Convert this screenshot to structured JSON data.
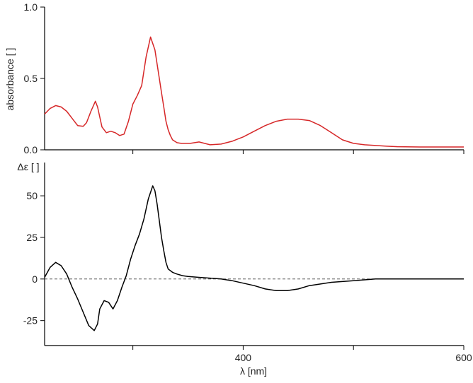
{
  "chart_data": [
    {
      "type": "line",
      "panel": "top",
      "ylabel": "absorbance [ ]",
      "xlabel": "",
      "xlim": [
        220,
        600
      ],
      "ylim": [
        0,
        1.0
      ],
      "y_ticks": [
        0.0,
        0.5,
        1.0
      ],
      "y_tick_labels": [
        "0.0",
        "0.5",
        "1.0"
      ],
      "x_ticks": [
        300,
        400,
        500,
        600
      ],
      "x_tick_labels": [
        "",
        "",
        "",
        ""
      ],
      "grid": false,
      "color": "#d62728",
      "series": [
        {
          "x": [
            220,
            225,
            230,
            235,
            240,
            245,
            250,
            255,
            258,
            262,
            266,
            268,
            272,
            276,
            280,
            284,
            288,
            292,
            296,
            300,
            304,
            308,
            312,
            316,
            320,
            324,
            326,
            328,
            330,
            332,
            334,
            336,
            340,
            344,
            348,
            352,
            356,
            360,
            365,
            370,
            380,
            390,
            395,
            400,
            410,
            420,
            430,
            440,
            450,
            460,
            470,
            480,
            490,
            500,
            510,
            520,
            530,
            540,
            560,
            580,
            600
          ],
          "y": [
            0.25,
            0.29,
            0.31,
            0.3,
            0.27,
            0.22,
            0.17,
            0.165,
            0.19,
            0.27,
            0.34,
            0.3,
            0.16,
            0.12,
            0.13,
            0.12,
            0.1,
            0.11,
            0.2,
            0.32,
            0.38,
            0.45,
            0.65,
            0.79,
            0.7,
            0.5,
            0.4,
            0.3,
            0.2,
            0.14,
            0.1,
            0.07,
            0.05,
            0.045,
            0.045,
            0.045,
            0.05,
            0.055,
            0.045,
            0.035,
            0.04,
            0.06,
            0.075,
            0.09,
            0.13,
            0.17,
            0.2,
            0.215,
            0.215,
            0.205,
            0.17,
            0.12,
            0.07,
            0.045,
            0.035,
            0.03,
            0.025,
            0.022,
            0.02,
            0.02,
            0.02
          ]
        }
      ]
    },
    {
      "type": "line",
      "panel": "bottom",
      "ylabel": "Δε [ ]",
      "xlabel": "λ [nm]",
      "xlim": [
        220,
        600
      ],
      "ylim": [
        -40,
        70
      ],
      "y_ticks": [
        -25,
        0,
        25,
        50
      ],
      "y_tick_labels": [
        "-25",
        "0",
        "25",
        "50"
      ],
      "x_ticks": [
        300,
        400,
        500,
        600
      ],
      "x_tick_labels": [
        "",
        "400",
        "",
        "600"
      ],
      "zero_line": true,
      "grid": false,
      "color": "#000000",
      "series": [
        {
          "x": [
            220,
            225,
            230,
            235,
            240,
            245,
            250,
            255,
            260,
            265,
            268,
            270,
            274,
            278,
            282,
            286,
            290,
            294,
            298,
            302,
            306,
            310,
            314,
            318,
            320,
            322,
            324,
            326,
            328,
            330,
            332,
            336,
            340,
            345,
            350,
            360,
            370,
            380,
            390,
            400,
            410,
            420,
            430,
            440,
            450,
            460,
            470,
            480,
            490,
            500,
            510,
            520,
            540,
            560,
            580,
            600
          ],
          "y": [
            1,
            7,
            10,
            8,
            3,
            -5,
            -12,
            -20,
            -28,
            -31,
            -27,
            -18,
            -13,
            -14,
            -18,
            -13,
            -5,
            2,
            12,
            20,
            27,
            36,
            48,
            56,
            53,
            45,
            35,
            25,
            17,
            10,
            6,
            4,
            3,
            2,
            1.5,
            1,
            0.5,
            0,
            -1,
            -2.5,
            -4,
            -6,
            -7,
            -7,
            -6,
            -4,
            -3,
            -2,
            -1.5,
            -1,
            -0.5,
            0,
            0,
            0,
            0,
            0
          ]
        }
      ]
    }
  ]
}
